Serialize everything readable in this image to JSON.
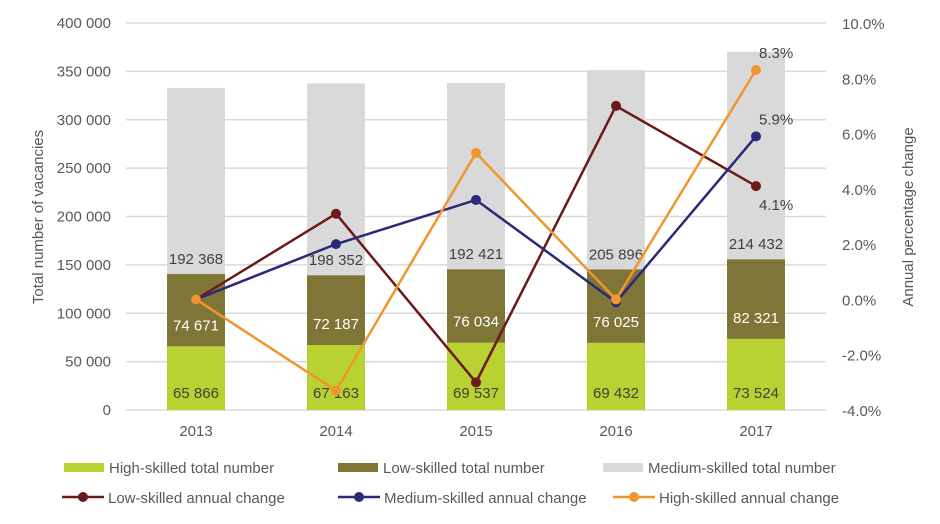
{
  "chart_data": {
    "type": "bar",
    "subtype": "stacked-bar-with-lines-dual-axis",
    "title": "",
    "categories": [
      "2013",
      "2014",
      "2015",
      "2016",
      "2017"
    ],
    "xlabel": "",
    "ylabel": "Total number of vacancies",
    "ylabel_right": "Annual percentage change",
    "ylim": [
      0,
      400000
    ],
    "ylim_right": [
      -0.04,
      0.1
    ],
    "yticks": [
      "0",
      "50 000",
      "100 000",
      "150 000",
      "200 000",
      "250 000",
      "300 000",
      "350 000",
      "400 000"
    ],
    "yticks_right": [
      "-4.0%",
      "-2.0%",
      "0.0%",
      "2.0%",
      "4.0%",
      "6.0%",
      "8.0%",
      "10.0%"
    ],
    "grid": true,
    "legend_position": "bottom",
    "bar_series": [
      {
        "name": "High-skilled total number",
        "color": "#B9D232",
        "label_color": "#404040",
        "values": [
          65866,
          67163,
          69537,
          69432,
          73524
        ],
        "labels": [
          "65 866",
          "67 163",
          "69 537",
          "69 432",
          "73 524"
        ]
      },
      {
        "name": "Low-skilled total number",
        "color": "#7F7537",
        "label_color": "#FFFFFF",
        "values": [
          74671,
          72187,
          76034,
          76025,
          82321
        ],
        "labels": [
          "74 671",
          "72 187",
          "76 034",
          "76 025",
          "82 321"
        ]
      },
      {
        "name": "Medium-skilled total number",
        "color": "#D9D9D9",
        "label_color": "#404040",
        "values": [
          192368,
          198352,
          192421,
          205896,
          214432
        ],
        "labels": [
          "192 368",
          "198 352",
          "192 421",
          "205 896",
          "214 432"
        ]
      }
    ],
    "line_series": [
      {
        "name": "Low-skilled annual change",
        "color": "#6B1A1A",
        "values": [
          0.0,
          3.1,
          -3.0,
          7.0,
          4.1
        ],
        "end_label": "4.1%"
      },
      {
        "name": "Medium-skilled annual change",
        "color": "#2B2A78",
        "values": [
          0.0,
          2.0,
          3.6,
          -0.1,
          5.9
        ],
        "end_label": "5.9%"
      },
      {
        "name": "High-skilled annual change",
        "color": "#F0962E",
        "values": [
          0.0,
          -3.3,
          5.3,
          0.0,
          8.3
        ],
        "end_label": "8.3%"
      }
    ]
  },
  "legend": {
    "row1": [
      "High-skilled total number",
      "Low-skilled total number",
      "Medium-skilled total number"
    ],
    "row2": [
      "Low-skilled annual change",
      "Medium-skilled annual change",
      "High-skilled annual change"
    ]
  }
}
